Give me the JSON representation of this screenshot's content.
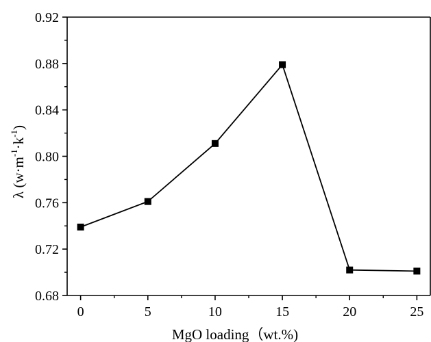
{
  "chart_data": {
    "type": "line",
    "x": [
      0,
      5,
      10,
      15,
      20,
      25
    ],
    "series": [
      {
        "values": [
          0.739,
          0.761,
          0.811,
          0.879,
          0.702,
          0.701
        ],
        "color": "#000000",
        "marker": "square"
      }
    ],
    "xlabel": "MgO loading（wt.%)",
    "ylabel_parts": {
      "prefix": "λ (w·m",
      "sup1": "-1",
      "middle": "·k",
      "sup2": "-1",
      "suffix": ")"
    },
    "xlim": [
      -1,
      26
    ],
    "ylim": [
      0.68,
      0.92
    ],
    "xticks": [
      "0",
      "5",
      "10",
      "15",
      "20",
      "25"
    ],
    "yticks": [
      "0.68",
      "0.72",
      "0.76",
      "0.80",
      "0.84",
      "0.88",
      "0.92"
    ],
    "grid": false,
    "legend": "none"
  }
}
